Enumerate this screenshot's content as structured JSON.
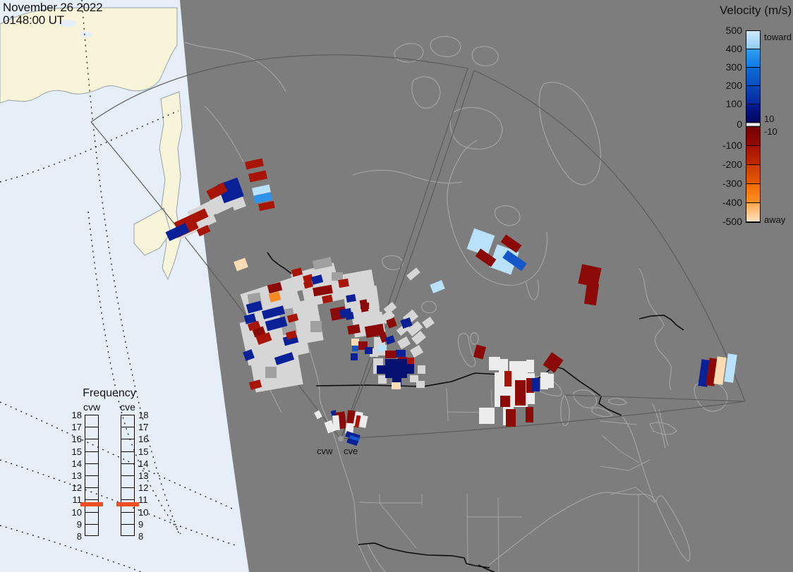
{
  "timestamp": {
    "line1": "November 26 2022",
    "line2": "0148:00 UT"
  },
  "velocity_legend": {
    "title": "Velocity (m/s)",
    "toward_label": "toward",
    "away_label": "away",
    "zero_upper": "10",
    "zero_lower": "-10",
    "tick_labels": [
      "500",
      "400",
      "300",
      "200",
      "100",
      "0",
      "-100",
      "-200",
      "-300",
      "-400",
      "-500"
    ],
    "segments": [
      {
        "top": "#cfeafd",
        "bottom": "#8fcdf5"
      },
      {
        "top": "#2f9ff3",
        "bottom": "#0c7ae3"
      },
      {
        "top": "#0d6bd3",
        "bottom": "#0a4fc2"
      },
      {
        "top": "#0945b8",
        "bottom": "#062a9e"
      },
      {
        "top": "#041d92",
        "bottom": "#01045e"
      },
      {
        "top": "#750101",
        "bottom": "#930b01"
      },
      {
        "top": "#a51103",
        "bottom": "#bf2a00"
      },
      {
        "top": "#cb3c00",
        "bottom": "#e65900"
      },
      {
        "top": "#ef6b00",
        "bottom": "#fe9122"
      },
      {
        "top": "#ffa64a",
        "bottom": "#ffe2c1"
      }
    ],
    "zero_band_colors": {
      "edge": "#8a8a8a",
      "center": "#ffffff"
    }
  },
  "frequency_legend": {
    "title": "Frequency",
    "columns": [
      {
        "label": "cvw"
      },
      {
        "label": "cve"
      }
    ],
    "tick_labels": [
      "18",
      "17",
      "16",
      "15",
      "14",
      "13",
      "12",
      "11",
      "10",
      "9",
      "8"
    ],
    "marker_color": "#ee4e23",
    "marker_between": "10-11"
  },
  "radar_site_labels": {
    "west": "cvw",
    "east": "cve"
  },
  "map_colors": {
    "ocean": "#e6eff8",
    "daylit_land": "#f8f4da",
    "night_shade": "#7d7d7d",
    "coastline": "#a3a3a3",
    "border": "#0a0a0a",
    "fan_outline": "#5c5c5c"
  },
  "cell_palette": {
    "lb": "#b9e1f9",
    "mb": "#2f93ea",
    "b": "#1556c8",
    "nv": "#0a2096",
    "dn": "#071270",
    "mr": "#8b0a08",
    "dr": "#a81405",
    "or": "#f6891f",
    "pc": "#fbdcb4",
    "gs": "#d6d6d6",
    "g2": "#a0a0a0",
    "wh": "#ececec"
  },
  "velocity_cells": [
    [
      "gs",
      347,
      404,
      78,
      55,
      -18
    ],
    [
      "gs",
      345,
      448,
      88,
      62,
      -12
    ],
    [
      "gs",
      358,
      503,
      68,
      48,
      -10
    ],
    [
      "gs",
      392,
      428,
      62,
      60,
      -10
    ],
    [
      "gs",
      415,
      380,
      62,
      26,
      -15
    ],
    [
      "gs",
      458,
      388,
      72,
      32,
      -10
    ],
    [
      "gs",
      430,
      402,
      56,
      28,
      -12
    ],
    [
      "gs",
      488,
      408,
      48,
      32,
      -8
    ],
    [
      "gs",
      500,
      436,
      40,
      40,
      -8
    ],
    [
      "g2",
      352,
      416,
      18,
      20,
      -10
    ],
    [
      "g2",
      398,
      438,
      20,
      36,
      -10
    ],
    [
      "g2",
      440,
      455,
      16,
      16,
      0
    ],
    [
      "g2",
      444,
      367,
      26,
      13,
      -12
    ],
    [
      "g2",
      470,
      386,
      16,
      12,
      0
    ],
    [
      "gs",
      373,
      518,
      40,
      30,
      -12
    ],
    [
      "g2",
      376,
      520,
      16,
      16,
      0
    ],
    [
      "gs",
      528,
      443,
      16,
      30,
      -10
    ],
    [
      "gs",
      530,
      478,
      16,
      26,
      0
    ],
    [
      "gs",
      545,
      432,
      16,
      10,
      -40
    ],
    [
      "gs",
      540,
      443,
      18,
      12,
      -40
    ],
    [
      "gs",
      573,
      443,
      18,
      13,
      -40
    ],
    [
      "gs",
      563,
      462,
      17,
      10,
      -40
    ],
    [
      "gs",
      578,
      460,
      20,
      12,
      -40
    ],
    [
      "gs",
      585,
      473,
      17,
      12,
      -40
    ],
    [
      "gs",
      565,
      480,
      15,
      12,
      -30
    ],
    [
      "gs",
      583,
      492,
      15,
      12,
      -30
    ],
    [
      "gs",
      592,
      518,
      11,
      12,
      0
    ],
    [
      "gs",
      590,
      540,
      12,
      10,
      0
    ],
    [
      "gs",
      600,
      452,
      14,
      11,
      -35
    ],
    [
      "gs",
      577,
      384,
      18,
      9,
      -40
    ],
    [
      "gs",
      529,
      508,
      14,
      22,
      0
    ],
    [
      "gs",
      536,
      532,
      12,
      12,
      0
    ],
    [
      "gs",
      524,
      494,
      12,
      12,
      0
    ],
    [
      "gs",
      581,
      532,
      12,
      10,
      0
    ],
    [
      "gs",
      300,
      276,
      34,
      22,
      -25
    ],
    [
      "gs",
      268,
      291,
      38,
      20,
      -25
    ],
    [
      "gs",
      250,
      316,
      44,
      15,
      -25
    ],
    [
      "gs",
      328,
      276,
      18,
      20,
      -20
    ],
    [
      "gs",
      285,
      305,
      20,
      14,
      -25
    ],
    [
      "wh",
      693,
      506,
      16,
      19,
      0
    ],
    [
      "wh",
      707,
      509,
      13,
      19,
      0
    ],
    [
      "wh",
      722,
      512,
      26,
      18,
      0
    ],
    [
      "wh",
      701,
      528,
      47,
      49,
      0
    ],
    [
      "wh",
      747,
      529,
      11,
      44,
      0
    ],
    [
      "wh",
      679,
      578,
      22,
      23,
      0
    ],
    [
      "wh",
      713,
      573,
      15,
      30,
      0
    ],
    [
      "wh",
      766,
      528,
      11,
      24,
      0
    ],
    [
      "wh",
      777,
      530,
      8,
      20,
      0
    ],
    [
      "wh",
      746,
      510,
      11,
      18,
      0
    ],
    [
      "dr",
      348,
      227,
      25,
      11,
      -12
    ],
    [
      "dr",
      353,
      244,
      25,
      12,
      -12
    ],
    [
      "lb",
      358,
      264,
      25,
      11,
      -12
    ],
    [
      "mb",
      360,
      275,
      25,
      11,
      -12
    ],
    [
      "dr",
      367,
      287,
      22,
      10,
      -12
    ],
    [
      "nv",
      312,
      256,
      30,
      28,
      -20
    ],
    [
      "dr",
      294,
      264,
      27,
      14,
      -28
    ],
    [
      "dr",
      247,
      305,
      48,
      13,
      -25
    ],
    [
      "dr",
      247,
      320,
      34,
      11,
      -25
    ],
    [
      "nv",
      236,
      322,
      31,
      14,
      -25
    ],
    [
      "dr",
      280,
      322,
      17,
      10,
      -25
    ],
    [
      "lb",
      666,
      328,
      31,
      31,
      20
    ],
    [
      "lb",
      698,
      351,
      33,
      34,
      20
    ],
    [
      "mr",
      711,
      339,
      27,
      13,
      35
    ],
    [
      "mr",
      675,
      359,
      27,
      13,
      35
    ],
    [
      "b",
      713,
      363,
      33,
      13,
      35
    ],
    [
      "mr",
      822,
      377,
      28,
      28,
      12
    ],
    [
      "mr",
      830,
      401,
      17,
      31,
      8
    ],
    [
      "nv",
      992,
      510,
      13,
      38,
      8
    ],
    [
      "mr",
      1003,
      508,
      12,
      39,
      8
    ],
    [
      "pc",
      1014,
      506,
      13,
      39,
      8
    ],
    [
      "lb",
      1029,
      502,
      13,
      40,
      8
    ],
    [
      "lb",
      611,
      400,
      18,
      13,
      -22
    ],
    [
      "dr",
      414,
      381,
      14,
      10,
      -15
    ],
    [
      "dr",
      430,
      390,
      13,
      9,
      -15
    ],
    [
      "nv",
      442,
      391,
      15,
      11,
      -15
    ],
    [
      "dr",
      431,
      399,
      12,
      9,
      -15
    ],
    [
      "mr",
      444,
      406,
      27,
      12,
      -10
    ],
    [
      "dr",
      480,
      396,
      14,
      11,
      -10
    ],
    [
      "nv",
      491,
      418,
      13,
      10,
      -10
    ],
    [
      "mr",
      511,
      425,
      10,
      17,
      -10
    ],
    [
      "dr",
      457,
      419,
      14,
      10,
      -12
    ],
    [
      "mr",
      469,
      436,
      21,
      17,
      -10
    ],
    [
      "nv",
      482,
      438,
      16,
      12,
      -10
    ],
    [
      "nv",
      350,
      429,
      21,
      13,
      -15
    ],
    [
      "nv",
      372,
      437,
      31,
      12,
      -15
    ],
    [
      "nv",
      347,
      446,
      15,
      12,
      -15
    ],
    [
      "nv",
      377,
      452,
      29,
      14,
      -15
    ],
    [
      "mr",
      380,
      402,
      19,
      12,
      -15
    ],
    [
      "or",
      382,
      415,
      15,
      12,
      -15
    ],
    [
      "dr",
      352,
      457,
      16,
      10,
      -20
    ],
    [
      "mr",
      359,
      465,
      16,
      11,
      -20
    ],
    [
      "dr",
      364,
      474,
      20,
      12,
      -20
    ],
    [
      "nv",
      402,
      476,
      20,
      12,
      -15
    ],
    [
      "dr",
      406,
      470,
      14,
      10,
      -15
    ],
    [
      "dr",
      408,
      446,
      14,
      10,
      -15
    ],
    [
      "nv",
      390,
      503,
      26,
      11,
      -18
    ],
    [
      "nv",
      346,
      497,
      13,
      13,
      -20
    ],
    [
      "dr",
      354,
      540,
      16,
      11,
      -15
    ],
    [
      "pc",
      333,
      368,
      17,
      14,
      -20
    ],
    [
      "mr",
      493,
      461,
      17,
      12,
      -10
    ],
    [
      "mr",
      518,
      461,
      26,
      16,
      -10
    ],
    [
      "nv",
      490,
      443,
      11,
      10,
      -10
    ],
    [
      "mr",
      511,
      429,
      12,
      9,
      0
    ],
    [
      "pc",
      498,
      480,
      11,
      10,
      0
    ],
    [
      "b",
      499,
      490,
      9,
      8,
      0
    ],
    [
      "mr",
      508,
      484,
      13,
      12,
      0
    ],
    [
      "nv",
      517,
      492,
      11,
      10,
      0
    ],
    [
      "nv",
      497,
      501,
      10,
      10,
      0
    ],
    [
      "lb",
      536,
      489,
      12,
      10,
      0
    ],
    [
      "mr",
      546,
      497,
      15,
      11,
      0
    ],
    [
      "nv",
      561,
      496,
      14,
      11,
      0
    ],
    [
      "mr",
      564,
      506,
      13,
      10,
      0
    ],
    [
      "dr",
      576,
      507,
      11,
      9,
      0
    ],
    [
      "dn",
      546,
      509,
      31,
      27,
      0
    ],
    [
      "dn",
      556,
      535,
      13,
      12,
      0
    ],
    [
      "dn",
      574,
      516,
      13,
      14,
      0
    ],
    [
      "dn",
      534,
      518,
      13,
      12,
      0
    ],
    [
      "pc",
      555,
      542,
      13,
      10,
      0
    ],
    [
      "mr",
      549,
      452,
      12,
      12,
      -20
    ],
    [
      "nv",
      569,
      452,
      14,
      12,
      -20
    ],
    [
      "mr",
      539,
      471,
      9,
      14,
      -20
    ],
    [
      "nv",
      547,
      477,
      12,
      10,
      -20
    ],
    [
      "wh",
      447,
      583,
      8,
      10,
      -30
    ],
    [
      "nv",
      470,
      582,
      7,
      11,
      -15
    ],
    [
      "mr",
      477,
      584,
      13,
      24,
      -8
    ],
    [
      "wh",
      472,
      589,
      9,
      21,
      -5
    ],
    [
      "mr",
      492,
      582,
      12,
      23,
      5
    ],
    [
      "wh",
      490,
      600,
      11,
      15,
      5
    ],
    [
      "wh",
      502,
      584,
      11,
      21,
      10
    ],
    [
      "dr",
      504,
      589,
      6,
      17,
      10
    ],
    [
      "wh",
      510,
      589,
      10,
      17,
      12
    ],
    [
      "wh",
      462,
      597,
      11,
      16,
      -20
    ],
    [
      "nv",
      490,
      614,
      20,
      8,
      18
    ],
    [
      "b",
      495,
      619,
      14,
      8,
      18
    ],
    [
      "nv",
      492,
      623,
      15,
      7,
      18
    ],
    [
      "mr",
      673,
      490,
      14,
      18,
      15
    ],
    [
      "mr",
      774,
      503,
      20,
      22,
      35
    ],
    [
      "dr",
      715,
      526,
      10,
      22,
      0
    ],
    [
      "mr",
      730,
      539,
      15,
      36,
      0
    ],
    [
      "mr",
      746,
      536,
      11,
      21,
      0
    ],
    [
      "nv",
      754,
      536,
      11,
      19,
      0
    ],
    [
      "mr",
      709,
      561,
      14,
      16,
      0
    ],
    [
      "mr",
      717,
      580,
      14,
      25,
      0
    ],
    [
      "mr",
      745,
      577,
      11,
      22,
      0
    ]
  ]
}
